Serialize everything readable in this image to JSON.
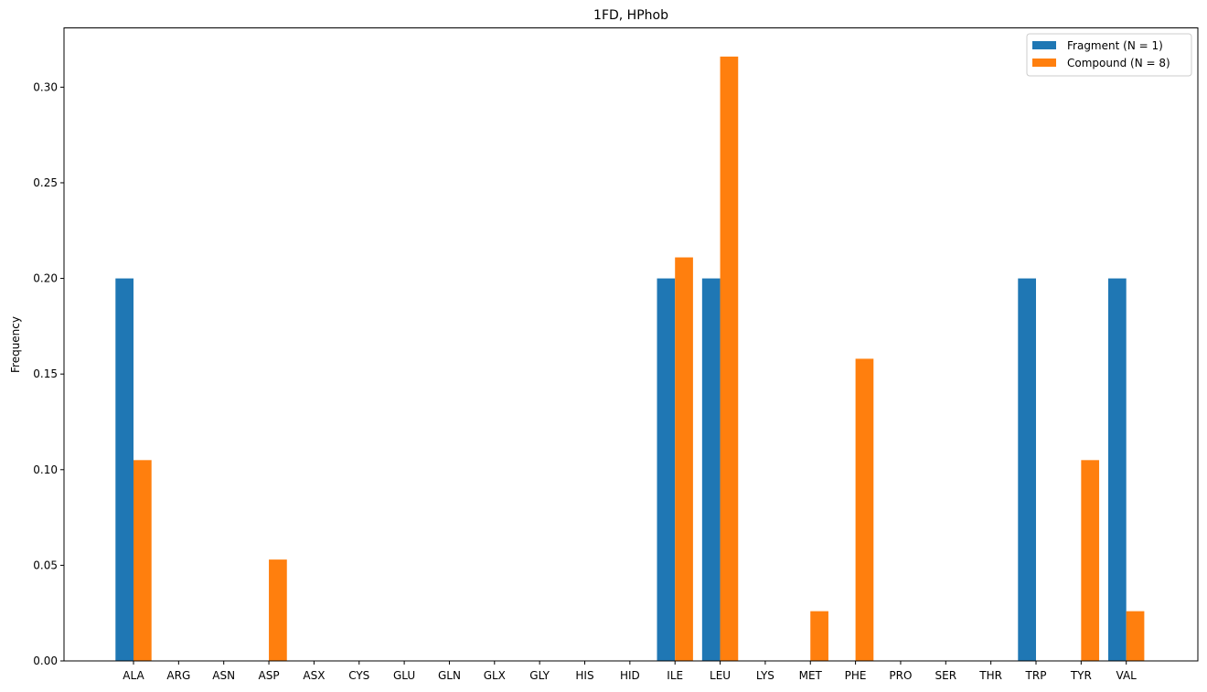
{
  "chart_data": {
    "type": "bar",
    "title": "1FD, HPhob",
    "xlabel": "",
    "ylabel": "Frequency",
    "ylim": [
      0,
      0.331
    ],
    "yticks": [
      0.0,
      0.05,
      0.1,
      0.15,
      0.2,
      0.25,
      0.3
    ],
    "ytick_labels": [
      "0.00",
      "0.05",
      "0.10",
      "0.15",
      "0.20",
      "0.25",
      "0.30"
    ],
    "categories": [
      "ALA",
      "ARG",
      "ASN",
      "ASP",
      "ASX",
      "CYS",
      "GLU",
      "GLN",
      "GLX",
      "GLY",
      "HIS",
      "HID",
      "ILE",
      "LEU",
      "LYS",
      "MET",
      "PHE",
      "PRO",
      "SER",
      "THR",
      "TRP",
      "TYR",
      "VAL"
    ],
    "series": [
      {
        "name": "Fragment (N = 1)",
        "color": "#1f77b4",
        "values": [
          0.2,
          0,
          0,
          0,
          0,
          0,
          0,
          0,
          0,
          0,
          0,
          0,
          0.2,
          0.2,
          0,
          0,
          0,
          0,
          0,
          0,
          0.2,
          0,
          0.2
        ]
      },
      {
        "name": "Compound (N = 8)",
        "color": "#ff7f0e",
        "values": [
          0.105,
          0,
          0,
          0.053,
          0,
          0,
          0,
          0,
          0,
          0,
          0,
          0,
          0.211,
          0.316,
          0,
          0.026,
          0.158,
          0,
          0,
          0,
          0,
          0.105,
          0.026
        ]
      }
    ],
    "grid": false,
    "legend_position": "top-right"
  }
}
